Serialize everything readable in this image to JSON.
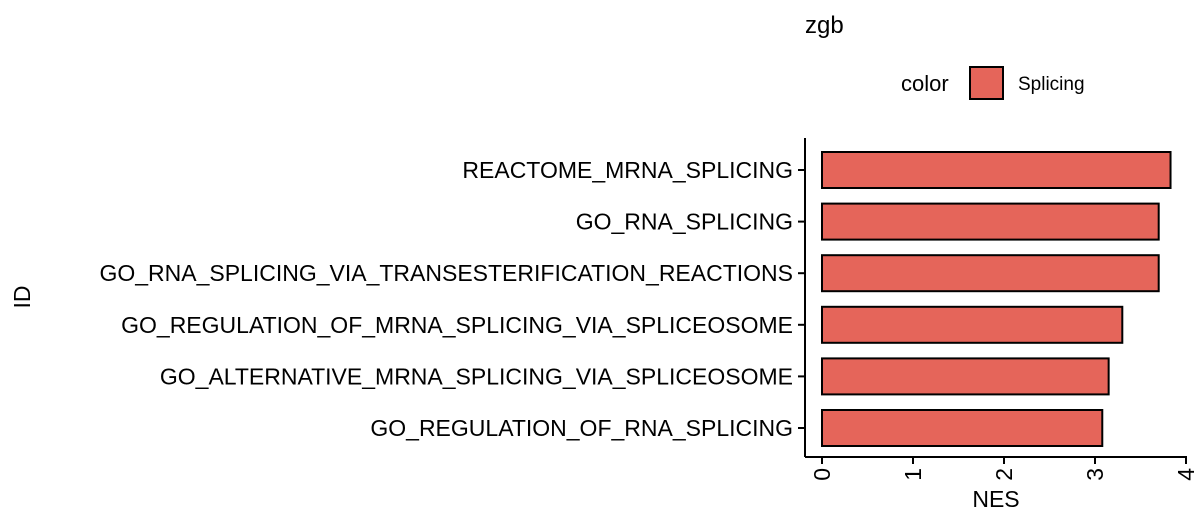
{
  "chart_data": {
    "type": "bar",
    "orientation": "horizontal",
    "title": "zgb",
    "xlabel": "NES",
    "ylabel": "ID",
    "xlim": [
      0,
      4
    ],
    "x_ticks": [
      "0",
      "1",
      "2",
      "3",
      "4"
    ],
    "categories": [
      "REACTOME_MRNA_SPLICING",
      "GO_RNA_SPLICING",
      "GO_RNA_SPLICING_VIA_TRANSESTERIFICATION_REACTIONS",
      "GO_REGULATION_OF_MRNA_SPLICING_VIA_SPLICEOSOME",
      "GO_ALTERNATIVE_MRNA_SPLICING_VIA_SPLICEOSOME",
      "GO_REGULATION_OF_RNA_SPLICING"
    ],
    "values": [
      3.83,
      3.7,
      3.7,
      3.3,
      3.15,
      3.08
    ],
    "series": [
      {
        "name": "Splicing",
        "color": "#E5655A"
      }
    ],
    "legend": {
      "title": "color",
      "entries": [
        "Splicing"
      ],
      "position": "top"
    },
    "grid": false
  }
}
